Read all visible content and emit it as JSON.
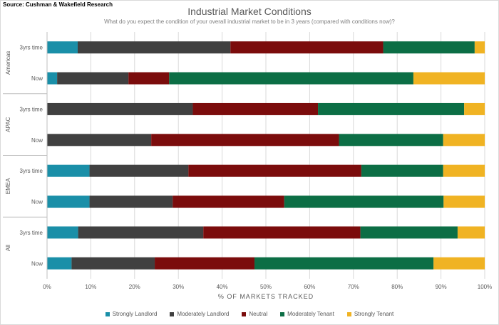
{
  "source": "Source: Cushman & Wakefield Research",
  "chart_data": {
    "type": "bar",
    "orientation": "horizontal",
    "stacked": "percent",
    "title": "Industrial Market Conditions",
    "subtitle": "What do you expect the condition of your overall industrial market to be in 3 years (compared with conditions now)?",
    "xlabel": "% OF MARKETS TRACKED",
    "xlim": [
      0,
      100
    ],
    "xticks": [
      "0%",
      "10%",
      "20%",
      "30%",
      "40%",
      "50%",
      "60%",
      "70%",
      "80%",
      "90%",
      "100%"
    ],
    "legend_position": "bottom",
    "groups": [
      {
        "name": "Americas",
        "categories": [
          "3yrs time",
          "Now"
        ]
      },
      {
        "name": "APAC",
        "categories": [
          "3yrs time",
          "Now"
        ]
      },
      {
        "name": "EMEA",
        "categories": [
          "3yrs time",
          "Now"
        ]
      },
      {
        "name": "All",
        "categories": [
          "3yrs time",
          "Now"
        ]
      }
    ],
    "series": [
      {
        "name": "Strongly Landlord",
        "color": "#1a8fa8",
        "values": [
          7,
          2.3,
          0,
          0,
          9.7,
          9.7,
          7.1,
          5.6
        ]
      },
      {
        "name": "Moderately Landlord",
        "color": "#404040",
        "values": [
          34.9,
          16.3,
          33.3,
          23.8,
          22.6,
          19,
          28.6,
          19
        ]
      },
      {
        "name": "Neutral",
        "color": "#7b0c0c",
        "values": [
          34.9,
          9.3,
          28.6,
          42.9,
          39.5,
          25.5,
          35.9,
          22.8
        ]
      },
      {
        "name": "Moderately Tenant",
        "color": "#0c6e45",
        "values": [
          20.9,
          55.8,
          33.4,
          23.8,
          18.7,
          36.4,
          22.2,
          40.9
        ]
      },
      {
        "name": "Strongly Tenant",
        "color": "#f0b323",
        "values": [
          2.3,
          16.3,
          4.7,
          9.5,
          9.5,
          9.4,
          6.2,
          11.7
        ]
      }
    ]
  }
}
